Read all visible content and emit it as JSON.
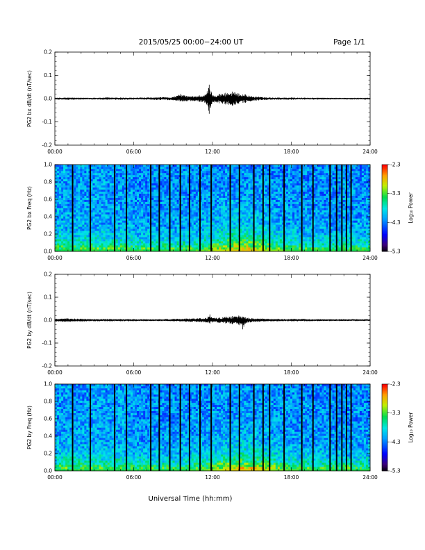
{
  "header": {
    "title": "2015/05/25  00:00−24:00 UT",
    "page": "Page 1/1"
  },
  "xaxis_label": "Universal Time (hh:mm)",
  "colorbar": {
    "label": "Log₁₀ Power",
    "ticks": [
      "-2.3",
      "-3.3",
      "-4.3",
      "-5.3"
    ],
    "range": [
      -5.3,
      -2.3
    ]
  },
  "chart_data": [
    {
      "type": "line",
      "ylabel": "PG2 bx dB/dt (nT/sec)",
      "xlim": [
        0,
        24
      ],
      "ylim": [
        -0.2,
        0.2
      ],
      "xticklabels": [
        "00:00",
        "06:00",
        "12:00",
        "18:00",
        "24:00"
      ],
      "yticklabels": [
        "0.2",
        "0.1",
        "0.0",
        "-0.1",
        "-0.2"
      ],
      "yticks": [
        0.2,
        0.1,
        0.0,
        -0.1,
        -0.2
      ],
      "series": [
        {
          "x": [
            0,
            1,
            2,
            3,
            4,
            5,
            6,
            7,
            8,
            9,
            9.6,
            10,
            10.5,
            11,
            11.5,
            11.75,
            12,
            12.5,
            13,
            13.5,
            14,
            14.5,
            15,
            15.5,
            16,
            17,
            18,
            19,
            20,
            21,
            22,
            23,
            24
          ],
          "y": [
            0.004,
            0.005,
            0.004,
            0.004,
            0.005,
            0.005,
            0.004,
            0.005,
            0.006,
            0.007,
            0.02,
            0.012,
            0.01,
            0.014,
            0.018,
            0.06,
            0.015,
            0.02,
            0.025,
            0.03,
            0.022,
            0.018,
            0.01,
            0.008,
            0.006,
            0.005,
            0.005,
            0.004,
            0.004,
            0.003,
            0.003,
            0.003,
            0.003
          ],
          "ymin": [
            -0.004,
            -0.005,
            -0.004,
            -0.004,
            -0.005,
            -0.005,
            -0.004,
            -0.005,
            -0.006,
            -0.007,
            -0.012,
            -0.012,
            -0.01,
            -0.014,
            -0.018,
            -0.065,
            -0.015,
            -0.02,
            -0.025,
            -0.03,
            -0.022,
            -0.018,
            -0.01,
            -0.008,
            -0.006,
            -0.005,
            -0.005,
            -0.004,
            -0.004,
            -0.003,
            -0.003,
            -0.003,
            -0.003
          ]
        }
      ]
    },
    {
      "type": "heatmap",
      "ylabel": "PG2 bx Freq (Hz)",
      "xlim": [
        0,
        24
      ],
      "ylim": [
        0,
        1.0
      ],
      "xticklabels": [
        "00:00",
        "06:00",
        "12:00",
        "18:00",
        "24:00"
      ],
      "yticklabels": [
        "1.0",
        "0.8",
        "0.6",
        "0.4",
        "0.2",
        "0.0"
      ],
      "yticks": [
        1.0,
        0.8,
        0.6,
        0.4,
        0.2,
        0.0
      ],
      "data_gaps_hours": [
        1.35,
        2.7,
        4.55,
        5.45,
        7.3,
        7.95,
        8.75,
        9.55,
        10.25,
        11.05,
        11.9,
        13.35,
        14.05,
        15.15,
        15.85,
        16.35,
        17.45,
        18.8,
        19.65,
        20.95,
        21.45,
        21.85,
        22.2,
        22.55
      ],
      "power_note": "log10 power, higher near 0.0 Hz, enhanced 12:00-17:00"
    },
    {
      "type": "line",
      "ylabel": "PG2 by dB/dt (nT/sec)",
      "xlim": [
        0,
        24
      ],
      "ylim": [
        -0.2,
        0.2
      ],
      "xticklabels": [
        "00:00",
        "06:00",
        "12:00",
        "18:00",
        "24:00"
      ],
      "yticklabels": [
        "0.2",
        "0.1",
        "0.0",
        "-0.1",
        "-0.2"
      ],
      "yticks": [
        0.2,
        0.1,
        0.0,
        -0.1,
        -0.2
      ],
      "series": [
        {
          "x": [
            0,
            1,
            2,
            3,
            4,
            5,
            6,
            7,
            8,
            9,
            10,
            11,
            11.5,
            11.8,
            12,
            12.5,
            13,
            13.5,
            14,
            14.3,
            14.5,
            15,
            16,
            17,
            18,
            19,
            20,
            21,
            22,
            23,
            24
          ],
          "y": [
            0.006,
            0.008,
            0.006,
            0.005,
            0.005,
            0.005,
            0.004,
            0.004,
            0.004,
            0.005,
            0.007,
            0.009,
            0.01,
            0.025,
            0.01,
            0.012,
            0.014,
            0.018,
            0.02,
            0.015,
            0.012,
            0.009,
            0.006,
            0.005,
            0.005,
            0.005,
            0.004,
            0.004,
            0.004,
            0.004,
            0.004
          ],
          "ymin": [
            -0.006,
            -0.008,
            -0.006,
            -0.005,
            -0.005,
            -0.005,
            -0.004,
            -0.004,
            -0.004,
            -0.005,
            -0.007,
            -0.009,
            -0.01,
            -0.015,
            -0.01,
            -0.012,
            -0.014,
            -0.018,
            -0.02,
            -0.04,
            -0.015,
            -0.009,
            -0.006,
            -0.005,
            -0.005,
            -0.005,
            -0.004,
            -0.004,
            -0.004,
            -0.004,
            -0.004
          ]
        }
      ]
    },
    {
      "type": "heatmap",
      "ylabel": "PG2 by Freq (Hz)",
      "xlim": [
        0,
        24
      ],
      "ylim": [
        0,
        1.0
      ],
      "xticklabels": [
        "00:00",
        "06:00",
        "12:00",
        "18:00",
        "24:00"
      ],
      "yticklabels": [
        "1.0",
        "0.8",
        "0.6",
        "0.4",
        "0.2",
        "0.0"
      ],
      "yticks": [
        1.0,
        0.8,
        0.6,
        0.4,
        0.2,
        0.0
      ],
      "data_gaps_hours": [
        1.35,
        2.7,
        4.55,
        5.45,
        7.3,
        7.95,
        8.75,
        9.55,
        10.25,
        11.05,
        11.9,
        13.35,
        14.05,
        15.15,
        15.85,
        16.35,
        17.45,
        18.8,
        19.65,
        20.95,
        21.45,
        21.85,
        22.2,
        22.55
      ],
      "power_note": "log10 power, higher near 0.0 Hz, enhanced 12:00-17:00"
    }
  ]
}
